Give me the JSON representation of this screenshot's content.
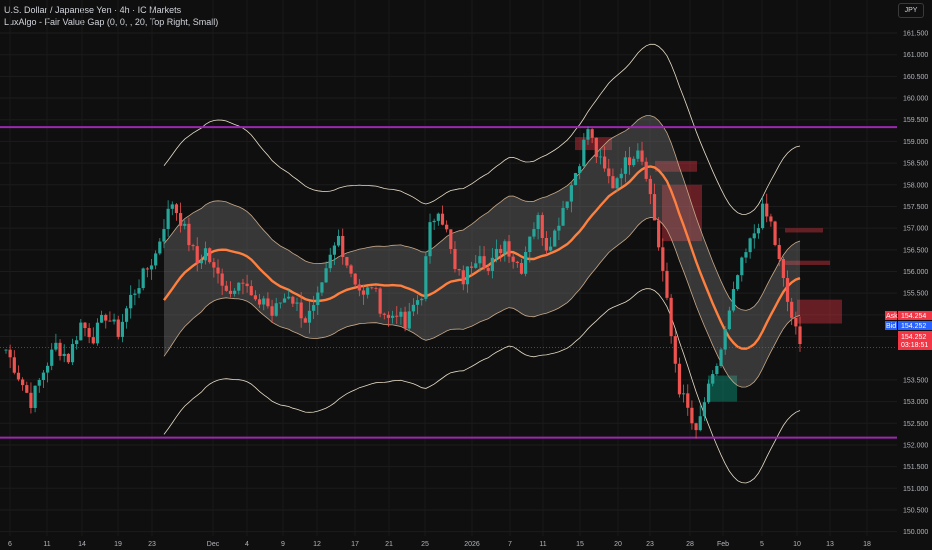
{
  "legend": {
    "symbol_line": "U.S. Dollar / Japanese Yen · 4h · IC Markets",
    "indicator_line": "LuxAlgo - Fair Value Gap (0, 0, , 20, Top Right, Small)"
  },
  "currency_button": "JPY",
  "chart_data": {
    "type": "candlestick",
    "title": "U.S. Dollar / Japanese Yen · 4h · IC Markets",
    "ylim": [
      149.9,
      161.8
    ],
    "y_ticks": [
      "161.500",
      "161.000",
      "160.500",
      "160.000",
      "159.500",
      "159.000",
      "158.500",
      "158.000",
      "157.500",
      "157.000",
      "156.500",
      "156.000",
      "155.500",
      "155.000",
      "154.500",
      "153.500",
      "153.000",
      "152.500",
      "152.000",
      "151.500",
      "151.000",
      "150.500",
      "150.000"
    ],
    "x_ticks": [
      "6",
      "11",
      "14",
      "19",
      "23",
      "Dec",
      "4",
      "9",
      "12",
      "17",
      "21",
      "25",
      "2026",
      "7",
      "11",
      "15",
      "20",
      "23",
      "28",
      "Feb",
      "5",
      "10",
      "13",
      "18"
    ],
    "horizontal_levels": [
      {
        "name": "resistance",
        "value": 159.33,
        "color": "#9c27b0"
      },
      {
        "name": "support",
        "value": 152.17,
        "color": "#9c27b0"
      }
    ],
    "price_tags": {
      "ask": {
        "label": "Ask",
        "value": "154.254",
        "color": "#f23645"
      },
      "bid": {
        "label": "Bid",
        "value": "154.252",
        "color": "#2962ff"
      },
      "last": {
        "value": "154.252",
        "countdown": "03:18:51",
        "color": "#f23645"
      }
    },
    "series": [
      {
        "name": "close",
        "color": "#26a69a",
        "values": [
          [
            0,
            154.2
          ],
          [
            3,
            153.6
          ],
          [
            6,
            153.0
          ],
          [
            9,
            153.7
          ],
          [
            12,
            154.3
          ],
          [
            15,
            154.0
          ],
          [
            18,
            154.8
          ],
          [
            21,
            154.5
          ],
          [
            24,
            155.0
          ],
          [
            27,
            154.6
          ],
          [
            30,
            155.4
          ],
          [
            33,
            155.9
          ],
          [
            36,
            156.4
          ],
          [
            38,
            157.1
          ],
          [
            40,
            157.6
          ],
          [
            42,
            157.2
          ],
          [
            44,
            156.7
          ],
          [
            46,
            156.2
          ],
          [
            48,
            156.5
          ],
          [
            50,
            156.0
          ],
          [
            52,
            155.8
          ],
          [
            54,
            155.5
          ],
          [
            56,
            155.9
          ],
          [
            58,
            155.6
          ],
          [
            60,
            155.2
          ],
          [
            62,
            155.4
          ],
          [
            64,
            155.0
          ],
          [
            66,
            155.3
          ],
          [
            68,
            155.5
          ],
          [
            70,
            155.2
          ],
          [
            72,
            154.9
          ],
          [
            74,
            155.1
          ],
          [
            76,
            155.6
          ],
          [
            78,
            156.3
          ],
          [
            80,
            156.8
          ],
          [
            82,
            156.2
          ],
          [
            84,
            155.8
          ],
          [
            86,
            155.4
          ],
          [
            88,
            155.7
          ],
          [
            90,
            155.2
          ],
          [
            92,
            154.9
          ],
          [
            94,
            155.1
          ],
          [
            96,
            154.7
          ],
          [
            98,
            155.2
          ],
          [
            100,
            155.5
          ],
          [
            102,
            157.0
          ],
          [
            104,
            157.5
          ],
          [
            106,
            156.9
          ],
          [
            108,
            156.0
          ],
          [
            110,
            155.8
          ],
          [
            112,
            156.2
          ],
          [
            114,
            156.5
          ],
          [
            116,
            156.0
          ],
          [
            118,
            156.4
          ],
          [
            120,
            156.7
          ],
          [
            122,
            156.3
          ],
          [
            124,
            156.1
          ],
          [
            126,
            156.9
          ],
          [
            128,
            157.2
          ],
          [
            130,
            156.6
          ],
          [
            132,
            156.9
          ],
          [
            134,
            157.5
          ],
          [
            136,
            158.0
          ],
          [
            138,
            158.6
          ],
          [
            140,
            159.3
          ],
          [
            142,
            158.7
          ],
          [
            144,
            158.3
          ],
          [
            146,
            158.0
          ],
          [
            148,
            158.4
          ],
          [
            150,
            158.6
          ],
          [
            152,
            158.9
          ],
          [
            154,
            158.3
          ],
          [
            156,
            157.2
          ],
          [
            158,
            156.0
          ],
          [
            160,
            154.5
          ],
          [
            162,
            153.3
          ],
          [
            164,
            152.8
          ],
          [
            166,
            152.2
          ],
          [
            168,
            153.0
          ],
          [
            170,
            153.5
          ],
          [
            172,
            154.2
          ],
          [
            174,
            155.0
          ],
          [
            176,
            155.9
          ],
          [
            178,
            156.4
          ],
          [
            180,
            156.9
          ],
          [
            182,
            157.4
          ],
          [
            184,
            157.1
          ],
          [
            186,
            156.2
          ],
          [
            188,
            155.3
          ],
          [
            190,
            154.6
          ],
          [
            191,
            154.25
          ]
        ]
      }
    ],
    "bands": [
      {
        "name": "basis",
        "color": "#ff7f3f"
      },
      {
        "name": "inner band",
        "color": "#c8a98a"
      },
      {
        "name": "outer band",
        "color": "#e8dcc8"
      }
    ],
    "fvg_boxes": [
      {
        "kind": "bearish",
        "top": 159.1,
        "bottom": 158.8
      },
      {
        "kind": "bearish",
        "top": 158.55,
        "bottom": 158.3
      },
      {
        "kind": "bearish",
        "top": 158.0,
        "bottom": 156.7
      },
      {
        "kind": "bearish",
        "top": 157.0,
        "bottom": 156.9
      },
      {
        "kind": "bearish",
        "top": 156.25,
        "bottom": 156.15
      },
      {
        "kind": "bearish",
        "top": 155.35,
        "bottom": 154.8
      },
      {
        "kind": "bullish",
        "top": 153.6,
        "bottom": 153.0
      }
    ]
  }
}
